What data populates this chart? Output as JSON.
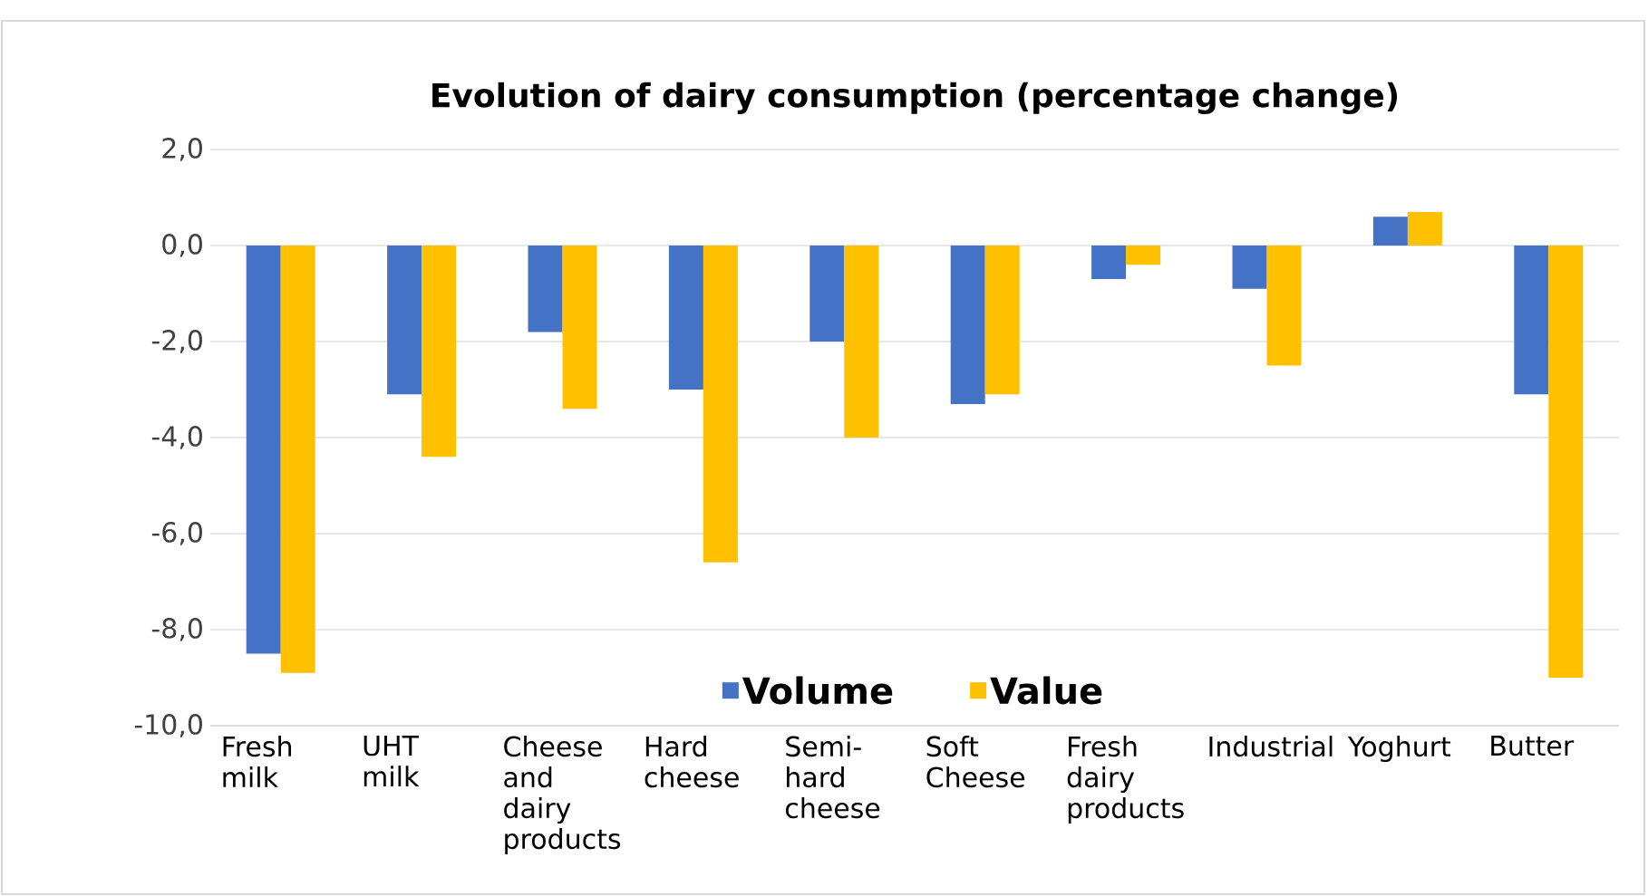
{
  "chart_data": {
    "type": "bar",
    "title": "Evolution of dairy consumption (percentage change)",
    "categories": [
      "Fresh milk",
      "UHT milk",
      "Cheese and dairy products",
      "Hard cheese",
      "Semi-hard cheese",
      "Soft Cheese",
      "Fresh dairy products",
      "Industrial",
      "Yoghurt",
      "Butter"
    ],
    "series": [
      {
        "name": "Volume",
        "color": "#4472c4",
        "values": [
          -8.5,
          -3.1,
          -1.8,
          -3.0,
          -2.0,
          -3.3,
          -0.7,
          -0.9,
          0.6,
          -3.1
        ]
      },
      {
        "name": "Value",
        "color": "#ffc000",
        "values": [
          -8.9,
          -4.4,
          -3.4,
          -6.6,
          -4.0,
          -3.1,
          -0.4,
          -2.5,
          0.7,
          -9.0
        ]
      }
    ],
    "ylim": [
      -10,
      2
    ],
    "yticks": [
      {
        "value": -10,
        "label": "-10,0"
      },
      {
        "value": -8,
        "label": "-8,0"
      },
      {
        "value": -6,
        "label": "-6,0"
      },
      {
        "value": -4,
        "label": "-4,0"
      },
      {
        "value": -2,
        "label": "-2,0"
      },
      {
        "value": 0,
        "label": "0,0"
      },
      {
        "value": 2,
        "label": "2,0"
      }
    ],
    "grid": "y",
    "legend": "bottom"
  }
}
